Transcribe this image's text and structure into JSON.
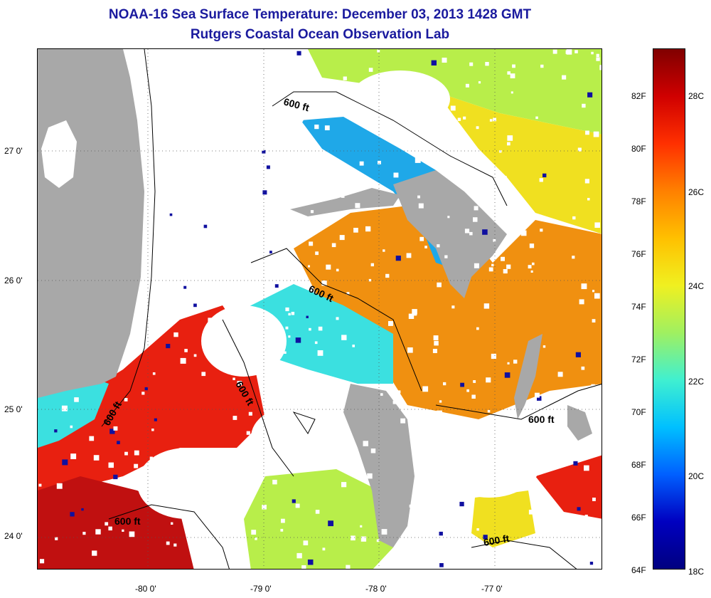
{
  "title": {
    "line1": "NOAA-16 Sea Surface Temperature:  December 03, 2013 1428 GMT",
    "line2": "Rutgers Coastal Ocean Observation Lab"
  },
  "map": {
    "latitude_labels": [
      "27 0'",
      "26 0'",
      "25 0'",
      "24 0'"
    ],
    "longitude_labels": [
      "-80 0'",
      "-79 0'",
      "-78 0'",
      "-77 0'"
    ],
    "contour_label": "600 ft",
    "colors": {
      "land": "#a8a8a8",
      "cloud": "#ffffff",
      "cold": "#1fa8e8",
      "cyan": "#3be0e0",
      "green": "#b8ee4a",
      "yellow": "#f0e020",
      "orange": "#f09010",
      "red": "#e82010",
      "deepred": "#c01010"
    }
  },
  "colorbar": {
    "fahrenheit_labels": [
      "82F",
      "80F",
      "78F",
      "76F",
      "74F",
      "72F",
      "70F",
      "68F",
      "66F",
      "64F"
    ],
    "celsius_labels": [
      "28C",
      "26C",
      "24C",
      "22C",
      "20C",
      "18C"
    ],
    "stops": [
      "#800000",
      "#d00000",
      "#ff3000",
      "#ff8000",
      "#ffc000",
      "#f0f020",
      "#a0f060",
      "#40f0d0",
      "#00c0ff",
      "#0060ff",
      "#0000c0",
      "#000080"
    ]
  }
}
